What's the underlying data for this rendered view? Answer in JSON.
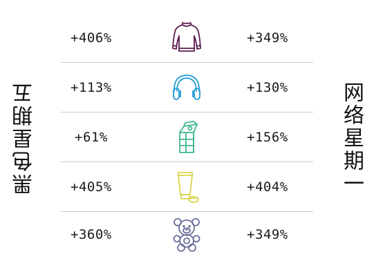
{
  "left_title": "黑色星期五",
  "right_title": "网络星期一",
  "rows": [
    {
      "icon": "sweater-icon",
      "color": "#5b1a4f",
      "left": "+406%",
      "right": "+349%"
    },
    {
      "icon": "headphones-icon",
      "color": "#1f9ad6",
      "left": "+113%",
      "right": "+130%"
    },
    {
      "icon": "milk-carton-icon",
      "color": "#3fb68e",
      "left": "+61%",
      "right": "+156%"
    },
    {
      "icon": "lotion-tube-icon",
      "color": "#d9d34a",
      "left": "+405%",
      "right": "+404%"
    },
    {
      "icon": "teddy-bear-icon",
      "color": "#6a6f9a",
      "left": "+360%",
      "right": "+349%"
    }
  ]
}
